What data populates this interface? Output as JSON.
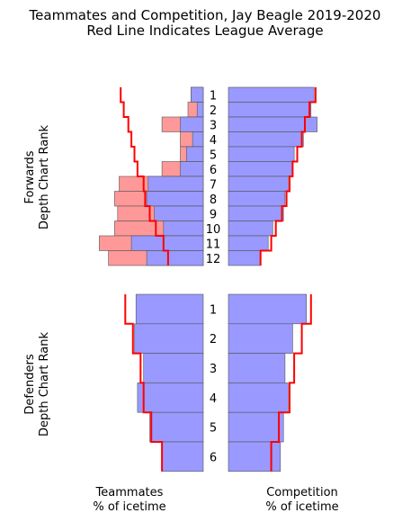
{
  "chart_data": {
    "type": "bar",
    "title": "Teammates and Competition, Jay Beagle 2019-2020",
    "subtitle": "Red Line Indicates League Average",
    "left_xlabel": "Teammates\n% of icetime",
    "right_xlabel": "Competition\n% of icetime",
    "colors": {
      "bar": "#9999ff",
      "excess": "#ff9999",
      "league_line": "#ff0000",
      "bar_edge": "#555555"
    },
    "panels": [
      {
        "label": "Forwards\nDepth Chart Rank",
        "categories": [
          "1",
          "2",
          "3",
          "4",
          "5",
          "6",
          "7",
          "8",
          "9",
          "10",
          "11",
          "12"
        ],
        "teammates_blue": [
          8,
          4,
          15,
          7,
          11,
          15,
          36,
          37,
          32,
          26,
          47,
          37
        ],
        "teammates_red": [
          8,
          10,
          27,
          15,
          15,
          27,
          55,
          58,
          56,
          58,
          68,
          62
        ],
        "teammates_league": [
          54,
          52,
          49,
          47,
          45,
          43,
          39,
          38,
          35,
          31,
          26,
          23
        ],
        "competition": [
          56,
          54,
          58,
          49,
          43,
          42,
          39,
          37,
          36,
          29,
          26,
          21
        ],
        "competition_league": [
          57,
          53,
          50,
          48,
          45,
          42,
          40,
          38,
          35,
          31,
          28,
          21
        ]
      },
      {
        "label": "Defenders\nDepth Chart Rank",
        "categories": [
          "1",
          "2",
          "3",
          "4",
          "5",
          "6"
        ],
        "teammates_blue": [
          44,
          45,
          39,
          43,
          35,
          27
        ],
        "teammates_league": [
          51,
          46,
          41,
          39,
          34,
          27
        ],
        "competition": [
          51,
          42,
          37,
          39,
          36,
          34
        ],
        "competition_league": [
          54,
          48,
          43,
          40,
          33,
          28
        ]
      }
    ]
  }
}
